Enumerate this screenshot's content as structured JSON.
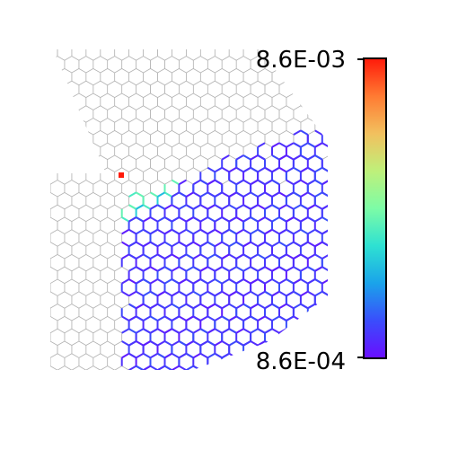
{
  "chart_data": {
    "type": "heatmap",
    "description_kind": "hexagonal mesh with edge-valued colormap",
    "colormap": "rainbow",
    "colorbar": {
      "max_label": "8.6E-03",
      "min_label": "8.6E-04",
      "max_value": 0.0086,
      "min_value": 0.00086,
      "colors": [
        "#6a0dff",
        "#3a4dfc",
        "#1aa3ea",
        "#2ee1d2",
        "#7dfca6",
        "#bff07a",
        "#f2c05e",
        "#ff7a32",
        "#ff1a0a"
      ]
    },
    "mesh_color": "#b4b4b4",
    "hotspot": {
      "value": 0.0086
    },
    "high_band": {
      "value": 0.0043
    },
    "background": "#ffffff"
  }
}
